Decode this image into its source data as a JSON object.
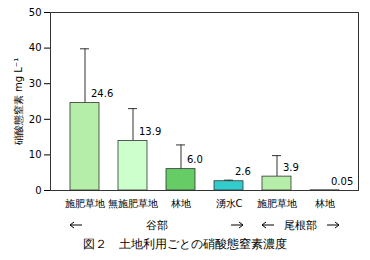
{
  "chart_data": {
    "type": "bar",
    "title": "図２　土地利用ごとの硝酸態窒素濃度",
    "y_label": "硝酸態窒素 mg L⁻¹",
    "categories": [
      "施肥草地",
      "無施肥草地",
      "林地",
      "湧水C",
      "施肥草地",
      "林地"
    ],
    "values": [
      24.6,
      13.9,
      6.0,
      2.6,
      3.9,
      0.05
    ],
    "value_labels": [
      "24.6",
      "13.9",
      "6.0",
      "2.6",
      "3.9",
      "0.05"
    ],
    "errors": [
      15.2,
      9.1,
      6.8,
      0.3,
      5.9,
      null
    ],
    "colors": [
      "#b4eea8",
      "#ccffcc",
      "#66cc66",
      "#33cccc",
      "#b4eea8",
      "#66cc66"
    ],
    "groups": [
      {
        "label": "谷部",
        "size": 4
      },
      {
        "label": "尾根部",
        "size": 2
      }
    ],
    "ylim": [
      0,
      50
    ],
    "yticks": [
      0,
      10,
      20,
      30,
      40,
      50
    ],
    "grid": false,
    "data_labels": true
  }
}
